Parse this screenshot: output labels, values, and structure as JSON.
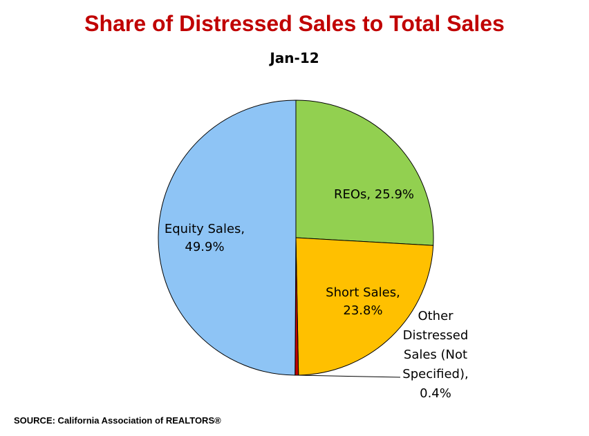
{
  "chart_data": {
    "type": "pie",
    "title": "Share of Distressed Sales to Total Sales",
    "subtitle": "Jan-12",
    "slices": [
      {
        "name": "REOs",
        "value": 25.9,
        "label_lines": [
          "REOs, 25.9%"
        ],
        "color": "#92d050"
      },
      {
        "name": "Short Sales",
        "value": 23.8,
        "label_lines": [
          "Short Sales,",
          "23.8%"
        ],
        "color": "#ffc000"
      },
      {
        "name": "Other Distressed Sales (Not Specified)",
        "value": 0.4,
        "label_lines": [
          "Other",
          "Distressed",
          "Sales (Not",
          "Specified),",
          "0.4%"
        ],
        "color": "#c00000"
      },
      {
        "name": "Equity Sales",
        "value": 49.9,
        "label_lines": [
          "Equity Sales,",
          "49.9%"
        ],
        "color": "#8ec4f5"
      }
    ],
    "legend": "none",
    "data_labels": true
  },
  "source": "SOURCE: California Association of REALTORS®"
}
